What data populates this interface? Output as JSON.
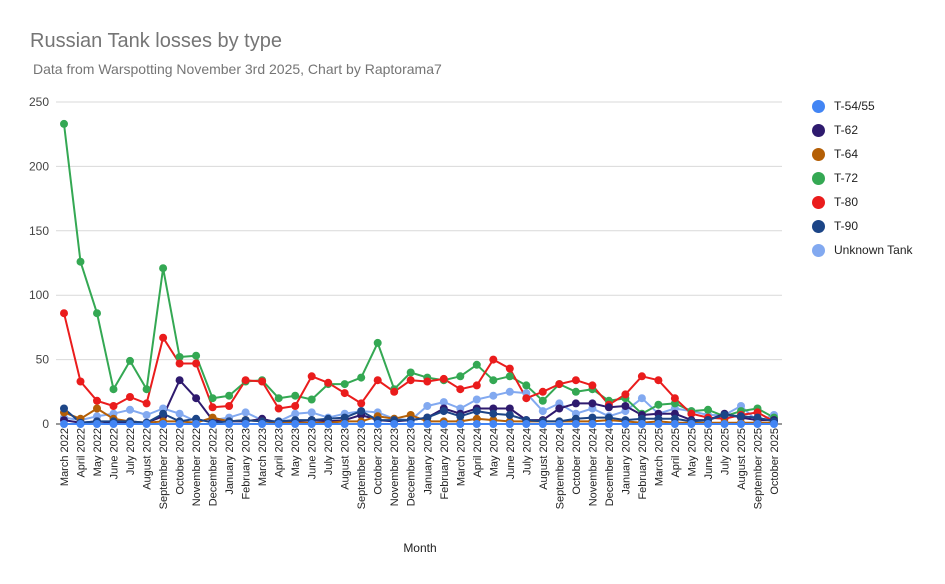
{
  "chart_data": {
    "type": "line",
    "title": "Russian Tank losses by type",
    "subtitle": "Data from Warspotting November 3rd 2025, Chart by Raptorama7",
    "xlabel": "Month",
    "ylabel": "",
    "ylim": [
      0,
      250
    ],
    "yticks": [
      0,
      50,
      100,
      150,
      200,
      250
    ],
    "grid": true,
    "legend_position": "right",
    "categories": [
      "March 2022",
      "April 2022",
      "May 2022",
      "June 2022",
      "July 2022",
      "August 2022",
      "September 2022",
      "October 2022",
      "November 2022",
      "December 2022",
      "January 2023",
      "February 2023",
      "March 2023",
      "April 2023",
      "May 2023",
      "June 2023",
      "July 2023",
      "August 2023",
      "September 2023",
      "October 2023",
      "November 2023",
      "December 2023",
      "January 2024",
      "February 2024",
      "March 2024",
      "April 2024",
      "May 2024",
      "June 2024",
      "July 2024",
      "August 2024",
      "September 2024",
      "October 2024",
      "November 2024",
      "December 2024",
      "January 2025",
      "February 2025",
      "March 2025",
      "April 2025",
      "May 2025",
      "June 2025",
      "July 2025",
      "August 2025",
      "September 2025",
      "October 2025"
    ],
    "series": [
      {
        "name": "T-54/55",
        "color": "#4285f4",
        "values": [
          0,
          0,
          0,
          0,
          0,
          0,
          0,
          0,
          0,
          0,
          0,
          0,
          0,
          0,
          0,
          0,
          0,
          0,
          0,
          0,
          0,
          0,
          0,
          0,
          0,
          0,
          0,
          0,
          0,
          0,
          0,
          0,
          0,
          0,
          0,
          0,
          0,
          0,
          0,
          0,
          0,
          0,
          0,
          0
        ]
      },
      {
        "name": "T-62",
        "color": "#2e1a6e",
        "values": [
          3,
          1,
          2,
          1,
          1,
          1,
          6,
          34,
          20,
          3,
          2,
          2,
          4,
          1,
          2,
          3,
          2,
          3,
          7,
          3,
          2,
          3,
          5,
          12,
          8,
          12,
          12,
          12,
          3,
          3,
          12,
          16,
          16,
          13,
          14,
          7,
          8,
          8,
          3,
          3,
          8,
          5,
          3,
          3
        ]
      },
      {
        "name": "T-64",
        "color": "#b45f06",
        "values": [
          9,
          4,
          12,
          4,
          2,
          1,
          2,
          2,
          1,
          5,
          2,
          3,
          2,
          1,
          1,
          1,
          1,
          2,
          2,
          6,
          4,
          7,
          2,
          2,
          2,
          4,
          3,
          2,
          2,
          2,
          2,
          2,
          2,
          3,
          2,
          1,
          2,
          1,
          1,
          1,
          1,
          1,
          1,
          1
        ]
      },
      {
        "name": "T-72",
        "color": "#34a853",
        "values": [
          233,
          126,
          86,
          27,
          49,
          27,
          121,
          52,
          53,
          20,
          22,
          33,
          34,
          20,
          22,
          19,
          31,
          31,
          36,
          63,
          27,
          40,
          36,
          34,
          37,
          46,
          34,
          37,
          30,
          18,
          31,
          25,
          27,
          18,
          20,
          8,
          15,
          16,
          10,
          11,
          6,
          10,
          12,
          5
        ]
      },
      {
        "name": "T-80",
        "color": "#ea1c1c",
        "values": [
          86,
          33,
          18,
          14,
          21,
          16,
          67,
          47,
          47,
          13,
          14,
          34,
          33,
          12,
          14,
          37,
          32,
          24,
          16,
          34,
          25,
          34,
          33,
          35,
          27,
          30,
          50,
          43,
          20,
          25,
          31,
          34,
          30,
          15,
          23,
          37,
          34,
          20,
          8,
          5,
          4,
          7,
          9,
          2
        ]
      },
      {
        "name": "T-90",
        "color": "#1c4587",
        "values": [
          12,
          1,
          2,
          2,
          2,
          1,
          8,
          2,
          4,
          1,
          2,
          3,
          2,
          2,
          3,
          3,
          4,
          5,
          10,
          3,
          3,
          3,
          5,
          10,
          6,
          10,
          8,
          7,
          3,
          2,
          2,
          4,
          5,
          5,
          3,
          4,
          4,
          4,
          2,
          3,
          7,
          6,
          5,
          2
        ]
      },
      {
        "name": "Unknown Tank",
        "color": "#82a9f0",
        "values": [
          5,
          3,
          6,
          8,
          11,
          7,
          12,
          8,
          2,
          3,
          5,
          9,
          3,
          2,
          8,
          9,
          5,
          8,
          10,
          9,
          4,
          3,
          14,
          17,
          12,
          19,
          22,
          25,
          24,
          10,
          16,
          8,
          12,
          6,
          10,
          20,
          8,
          12,
          10,
          7,
          7,
          14,
          2,
          7
        ]
      }
    ]
  }
}
